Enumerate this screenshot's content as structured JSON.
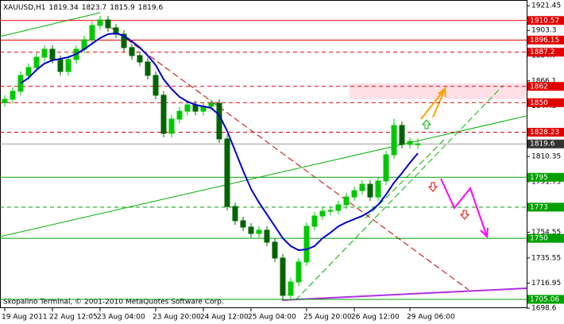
{
  "chart_data": {
    "type": "candlestick",
    "symbol": "XAUUSD,H1",
    "footer": "Skopalino Terminal, © 2001-2010 MetaQuotes Software Corp.",
    "open": [
      1850.0,
      1852.5,
      1858.4,
      1870.1,
      1875.9,
      1883.5,
      1889.4,
      1881.8,
      1873.0,
      1881.8,
      1889.4,
      1896.4,
      1906.9,
      1911.0,
      1905.2,
      1900.5,
      1890.6,
      1884.7,
      1880.0,
      1870.1,
      1855.5,
      1827.4,
      1837.9,
      1843.7,
      1848.4,
      1843.7,
      1847.3,
      1849.6,
      1823.3,
      1773.5,
      1763.0,
      1758.3,
      1753.6,
      1756.0,
      1747.2,
      1735.5,
      1708.0,
      1717.9,
      1732.6,
      1758.9,
      1766.5,
      1770.0,
      1770.6,
      1774.7,
      1780.5,
      1785.2,
      1789.9,
      1780.5,
      1792.3,
      1811.6,
      1833.2,
      1819.2,
      1819.34
    ],
    "high": [
      1855.5,
      1861.4,
      1873.1,
      1878.9,
      1886.5,
      1892.4,
      1892.4,
      1884.8,
      1884.8,
      1892.4,
      1899.4,
      1909.9,
      1914.0,
      1914.0,
      1908.2,
      1903.5,
      1893.6,
      1887.7,
      1883.0,
      1873.1,
      1858.5,
      1840.9,
      1846.7,
      1851.4,
      1851.4,
      1850.3,
      1852.6,
      1852.6,
      1826.3,
      1776.5,
      1766.0,
      1761.3,
      1759.0,
      1759.0,
      1750.2,
      1738.5,
      1720.9,
      1735.6,
      1761.9,
      1769.5,
      1773.0,
      1773.6,
      1777.7,
      1783.5,
      1788.2,
      1792.9,
      1792.9,
      1795.3,
      1814.6,
      1838.2,
      1836.2,
      1824.5,
      1823.7
    ],
    "low": [
      1847.0,
      1849.5,
      1855.4,
      1867.1,
      1872.9,
      1880.5,
      1878.8,
      1870.0,
      1870.0,
      1878.8,
      1886.4,
      1893.4,
      1903.9,
      1902.2,
      1897.5,
      1887.6,
      1881.7,
      1877.0,
      1867.1,
      1852.5,
      1824.4,
      1824.4,
      1834.9,
      1840.7,
      1840.7,
      1840.7,
      1844.3,
      1820.3,
      1770.5,
      1760.0,
      1755.3,
      1750.6,
      1750.6,
      1744.2,
      1732.5,
      1705.0,
      1705.0,
      1714.9,
      1729.6,
      1755.9,
      1763.5,
      1767.0,
      1767.6,
      1771.7,
      1777.5,
      1782.2,
      1777.5,
      1777.5,
      1789.3,
      1808.6,
      1816.2,
      1816.2,
      1815.9
    ],
    "close": [
      1852.5,
      1858.4,
      1870.1,
      1875.9,
      1883.5,
      1889.4,
      1881.8,
      1873.0,
      1881.8,
      1889.4,
      1896.4,
      1906.9,
      1911.0,
      1905.2,
      1900.5,
      1890.6,
      1884.7,
      1880.0,
      1870.1,
      1855.5,
      1827.4,
      1837.9,
      1843.7,
      1848.4,
      1843.7,
      1847.3,
      1849.6,
      1823.3,
      1773.5,
      1763.0,
      1758.3,
      1753.6,
      1756.0,
      1747.2,
      1735.5,
      1708.0,
      1717.9,
      1732.6,
      1758.9,
      1766.5,
      1770.0,
      1770.6,
      1774.7,
      1780.5,
      1785.2,
      1789.9,
      1780.5,
      1792.3,
      1811.6,
      1833.2,
      1819.2,
      1821.5,
      1819.6
    ],
    "ma": {
      "color": "#0000cc",
      "values": [
        null,
        null,
        1864.2,
        1868.3,
        1874.2,
        1878.9,
        1881.2,
        1882.4,
        1883.5,
        1885.9,
        1889.4,
        1893.5,
        1897.6,
        1900.5,
        1901.1,
        1899.3,
        1895.2,
        1890.6,
        1884.7,
        1877.7,
        1867.2,
        1860.1,
        1854.3,
        1850.8,
        1848.4,
        1847.3,
        1846.1,
        1840.8,
        1829.1,
        1814.5,
        1799.9,
        1786.4,
        1776.4,
        1767.7,
        1758.9,
        1750.1,
        1744.3,
        1741.3,
        1741.9,
        1744.3,
        1750.1,
        1754.2,
        1758.9,
        1761.8,
        1764.2,
        1766.5,
        1770.0,
        1774.7,
        1782.3,
        1791.1,
        1798.1,
        1805.7,
        1812.7
      ]
    },
    "bull_color": "#00c800",
    "bear_color": "#006400",
    "ylim": [
      1698.6,
      1924.5
    ],
    "yticks": [
      1921.45,
      1903.3,
      1884.7,
      1866.1,
      1847.5,
      1828.9,
      1810.35,
      1791.75,
      1773.15,
      1754.55,
      1735.55,
      1716.95,
      1698.6
    ],
    "xticks": [
      {
        "value": 0,
        "label": "19 Aug 2011"
      },
      {
        "value": 6,
        "label": "22 Aug 12:05"
      },
      {
        "value": 12,
        "label": "23 Aug 04:00"
      },
      {
        "value": 19,
        "label": "23 Aug 20:00"
      },
      {
        "value": 25,
        "label": "24 Aug 12:00"
      },
      {
        "value": 31,
        "label": "25 Aug 04:00"
      },
      {
        "value": 38,
        "label": "25 Aug 20:00"
      },
      {
        "value": 44,
        "label": "26 Aug 12:00"
      },
      {
        "value": 51,
        "label": "29 Aug 06:00"
      }
    ],
    "levels": [
      {
        "value": 1910.57,
        "color": "#e00000",
        "dashed": false
      },
      {
        "value": 1896.15,
        "color": "#e00000",
        "dashed": false
      },
      {
        "value": 1887.2,
        "color": "#e00000",
        "dashed": true
      },
      {
        "value": 1862.0,
        "color": "#e00000",
        "dashed": true
      },
      {
        "value": 1850.0,
        "color": "#e00000",
        "dashed": true
      },
      {
        "value": 1828.23,
        "color": "#e00000",
        "dashed": true
      },
      {
        "value": 1795.0,
        "color": "#00a000",
        "dashed": false
      },
      {
        "value": 1773.0,
        "color": "#00a000",
        "dashed": true
      },
      {
        "value": 1750.0,
        "color": "#00a000",
        "dashed": false
      },
      {
        "value": 1705.06,
        "color": "#00a000",
        "dashed": false
      }
    ],
    "current_color": "#333333"
  }
}
